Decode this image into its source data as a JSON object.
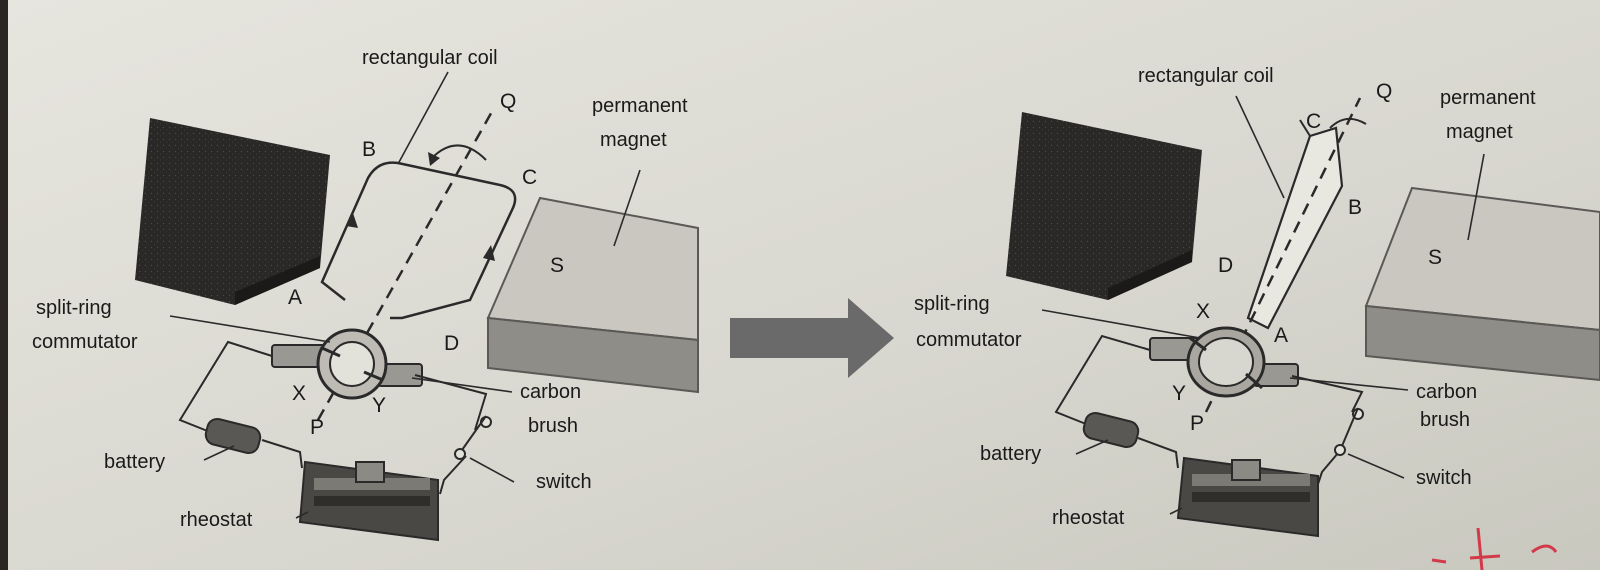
{
  "left_figure": {
    "labels": {
      "coil": "rectangular coil",
      "magnet_line1": "permanent",
      "magnet_line2": "magnet",
      "commutator_line1": "split-ring",
      "commutator_line2": "commutator",
      "brush_line1": "carbon",
      "brush_line2": "brush",
      "battery": "battery",
      "switch": "switch",
      "rheostat": "rheostat"
    },
    "points": {
      "a": "A",
      "b": "B",
      "c": "C",
      "d": "D",
      "p": "P",
      "q": "Q",
      "x": "X",
      "y": "Y",
      "s": "S"
    }
  },
  "right_figure": {
    "labels": {
      "coil": "rectangular coil",
      "magnet_line1": "permanent",
      "magnet_line2": "magnet",
      "commutator_line1": "split-ring",
      "commutator_line2": "commutator",
      "brush_line1": "carbon",
      "brush_line2": "brush",
      "battery": "battery",
      "switch": "switch",
      "rheostat": "rheostat"
    },
    "points": {
      "a": "A",
      "b": "B",
      "c": "C",
      "d": "D",
      "p": "P",
      "q": "Q",
      "x": "X",
      "y": "Y",
      "s": "S"
    }
  },
  "colors": {
    "background": "#d9d8d0",
    "north_magnet": "#2a2826",
    "south_magnet_top": "#c8c6be",
    "south_magnet_side": "#8e8c86",
    "line": "#2a2a2a",
    "arrow": "#6a6a6a",
    "ink_mark": "#d23a4a"
  }
}
